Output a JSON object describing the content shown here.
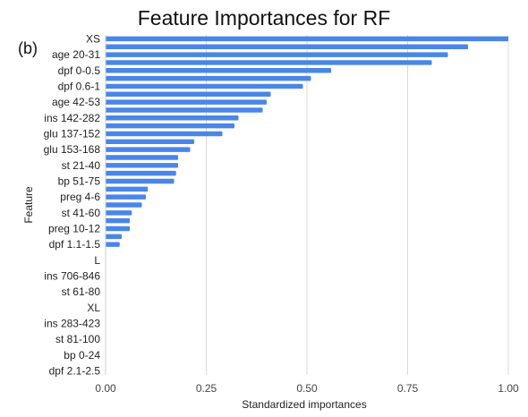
{
  "panel_label": "(b)",
  "chart_data": {
    "type": "bar",
    "orientation": "horizontal",
    "title": "Feature Importances for RF",
    "xlabel": "Standardized importances",
    "ylabel": "Feature",
    "xlim": [
      0,
      1
    ],
    "xticks": [
      "0.00",
      "0.25",
      "0.50",
      "0.75",
      "1.00"
    ],
    "grid": "vertical",
    "bar_color": "#4a86e8",
    "categories": [
      "XS",
      "",
      "age 20-31",
      "",
      "dpf 0-0.5",
      "",
      "dpf 0.6-1",
      "",
      "age 42-53",
      "",
      "ins 142-282",
      "",
      "glu 137-152",
      "",
      "glu 153-168",
      "",
      "st 21-40",
      "",
      "bp 51-75",
      "",
      "preg 4-6",
      "",
      "st 41-60",
      "",
      "preg 10-12",
      "",
      "dpf 1.1-1.5",
      "",
      "L",
      "",
      "ins 706-846",
      "",
      "st 61-80",
      "",
      "XL",
      "",
      "ins 283-423",
      "",
      "st 81-100",
      "",
      "bp 0-24",
      "",
      "dpf 2.1-2.5"
    ],
    "values": [
      1.0,
      0.9,
      0.85,
      0.81,
      0.56,
      0.51,
      0.49,
      0.41,
      0.4,
      0.39,
      0.33,
      0.32,
      0.29,
      0.22,
      0.21,
      0.18,
      0.18,
      0.175,
      0.17,
      0.105,
      0.1,
      0.09,
      0.065,
      0.06,
      0.06,
      0.04,
      0.035,
      0,
      0,
      0,
      0,
      0,
      0,
      0,
      0,
      0,
      0,
      0,
      0,
      0,
      0,
      0,
      0
    ]
  }
}
